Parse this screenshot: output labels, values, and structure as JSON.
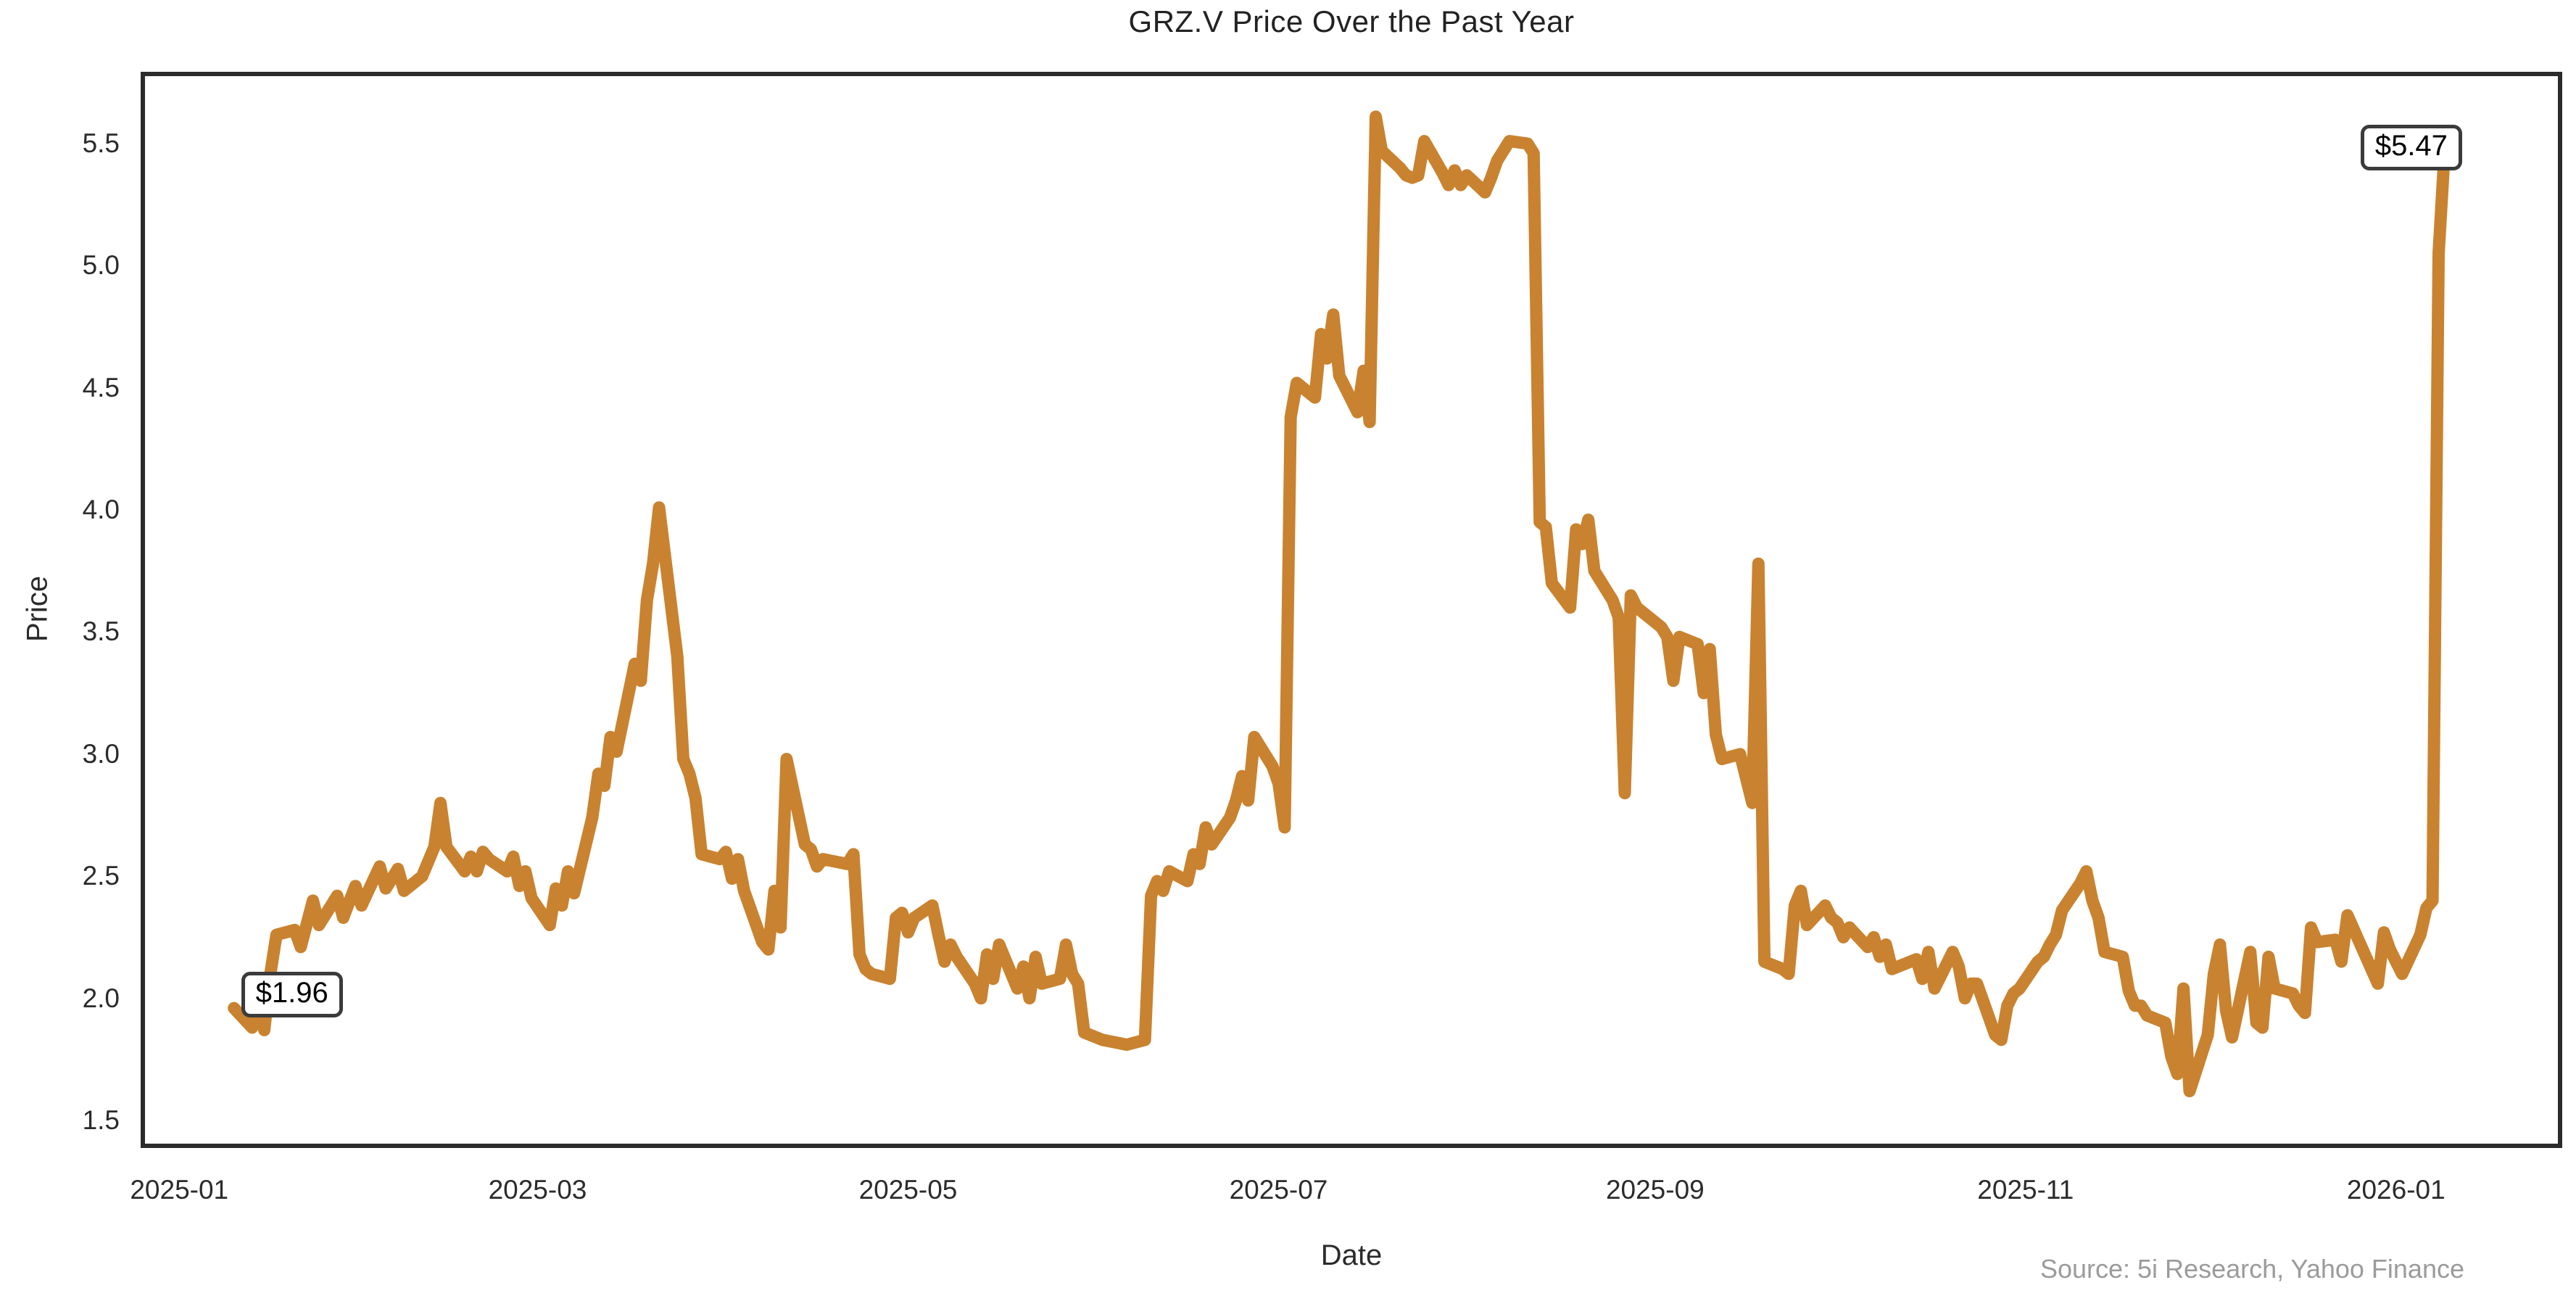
{
  "title": "GRZ.V Price Over the Past Year",
  "source_note": "Source: 5i Research, Yahoo Finance",
  "chart_data": {
    "type": "line",
    "title": "GRZ.V Price Over the Past Year",
    "xlabel": "Date",
    "ylabel": "Price",
    "grid": false,
    "legend_position": "none",
    "line_color": "#C9822F",
    "spine_color": "#2b2b2b",
    "ylim": [
      1.396,
      5.785
    ],
    "xlim_dates": [
      "2024-12-26",
      "2026-01-28"
    ],
    "y_ticks": [
      1.5,
      2.0,
      2.5,
      3.0,
      3.5,
      4.0,
      4.5,
      5.0,
      5.5
    ],
    "x_tick_labels": [
      "2025-01",
      "2025-03",
      "2025-05",
      "2025-07",
      "2025-09",
      "2025-11",
      "2026-01"
    ],
    "annotations": [
      {
        "label": "$1.96",
        "date": "2025-01-10",
        "price": 1.96
      },
      {
        "label": "$5.47",
        "date": "2026-01-09",
        "price": 5.47
      }
    ],
    "series": [
      {
        "name": "GRZ.V",
        "points": [
          [
            "2025-01-10",
            1.96
          ],
          [
            "2025-01-13",
            1.88
          ],
          [
            "2025-01-14",
            2.05
          ],
          [
            "2025-01-15",
            1.87
          ],
          [
            "2025-01-16",
            2.1
          ],
          [
            "2025-01-17",
            2.26
          ],
          [
            "2025-01-20",
            2.28
          ],
          [
            "2025-01-21",
            2.21
          ],
          [
            "2025-01-23",
            2.4
          ],
          [
            "2025-01-24",
            2.3
          ],
          [
            "2025-01-27",
            2.42
          ],
          [
            "2025-01-28",
            2.33
          ],
          [
            "2025-01-30",
            2.46
          ],
          [
            "2025-01-31",
            2.38
          ],
          [
            "2025-02-03",
            2.54
          ],
          [
            "2025-02-04",
            2.45
          ],
          [
            "2025-02-06",
            2.53
          ],
          [
            "2025-02-07",
            2.44
          ],
          [
            "2025-02-10",
            2.5
          ],
          [
            "2025-02-12",
            2.62
          ],
          [
            "2025-02-13",
            2.8
          ],
          [
            "2025-02-14",
            2.62
          ],
          [
            "2025-02-17",
            2.52
          ],
          [
            "2025-02-18",
            2.58
          ],
          [
            "2025-02-19",
            2.52
          ],
          [
            "2025-02-20",
            2.6
          ],
          [
            "2025-02-21",
            2.57
          ],
          [
            "2025-02-24",
            2.52
          ],
          [
            "2025-02-25",
            2.58
          ],
          [
            "2025-02-26",
            2.46
          ],
          [
            "2025-02-27",
            2.52
          ],
          [
            "2025-02-28",
            2.41
          ],
          [
            "2025-03-03",
            2.3
          ],
          [
            "2025-03-04",
            2.45
          ],
          [
            "2025-03-05",
            2.38
          ],
          [
            "2025-03-06",
            2.52
          ],
          [
            "2025-03-07",
            2.43
          ],
          [
            "2025-03-10",
            2.74
          ],
          [
            "2025-03-11",
            2.92
          ],
          [
            "2025-03-12",
            2.87
          ],
          [
            "2025-03-13",
            3.07
          ],
          [
            "2025-03-14",
            3.01
          ],
          [
            "2025-03-17",
            3.37
          ],
          [
            "2025-03-18",
            3.3
          ],
          [
            "2025-03-19",
            3.63
          ],
          [
            "2025-03-20",
            3.78
          ],
          [
            "2025-03-21",
            4.01
          ],
          [
            "2025-03-24",
            3.4
          ],
          [
            "2025-03-25",
            2.98
          ],
          [
            "2025-03-26",
            2.92
          ],
          [
            "2025-03-27",
            2.82
          ],
          [
            "2025-03-28",
            2.59
          ],
          [
            "2025-03-31",
            2.57
          ],
          [
            "2025-04-01",
            2.6
          ],
          [
            "2025-04-02",
            2.49
          ],
          [
            "2025-04-03",
            2.57
          ],
          [
            "2025-04-04",
            2.44
          ],
          [
            "2025-04-07",
            2.23
          ],
          [
            "2025-04-08",
            2.2
          ],
          [
            "2025-04-09",
            2.44
          ],
          [
            "2025-04-10",
            2.29
          ],
          [
            "2025-04-11",
            2.98
          ],
          [
            "2025-04-14",
            2.63
          ],
          [
            "2025-04-15",
            2.61
          ],
          [
            "2025-04-16",
            2.54
          ],
          [
            "2025-04-17",
            2.57
          ],
          [
            "2025-04-21",
            2.55
          ],
          [
            "2025-04-22",
            2.59
          ],
          [
            "2025-04-23",
            2.18
          ],
          [
            "2025-04-24",
            2.12
          ],
          [
            "2025-04-25",
            2.1
          ],
          [
            "2025-04-28",
            2.08
          ],
          [
            "2025-04-29",
            2.33
          ],
          [
            "2025-04-30",
            2.35
          ],
          [
            "2025-05-01",
            2.27
          ],
          [
            "2025-05-02",
            2.33
          ],
          [
            "2025-05-05",
            2.38
          ],
          [
            "2025-05-06",
            2.26
          ],
          [
            "2025-05-07",
            2.15
          ],
          [
            "2025-05-08",
            2.22
          ],
          [
            "2025-05-09",
            2.17
          ],
          [
            "2025-05-12",
            2.06
          ],
          [
            "2025-05-13",
            2.0
          ],
          [
            "2025-05-14",
            2.18
          ],
          [
            "2025-05-15",
            2.08
          ],
          [
            "2025-05-16",
            2.22
          ],
          [
            "2025-05-19",
            2.04
          ],
          [
            "2025-05-20",
            2.13
          ],
          [
            "2025-05-21",
            2.0
          ],
          [
            "2025-05-22",
            2.17
          ],
          [
            "2025-05-23",
            2.06
          ],
          [
            "2025-05-26",
            2.08
          ],
          [
            "2025-05-27",
            2.22
          ],
          [
            "2025-05-28",
            2.1
          ],
          [
            "2025-05-29",
            2.06
          ],
          [
            "2025-05-30",
            1.86
          ],
          [
            "2025-06-02",
            1.83
          ],
          [
            "2025-06-04",
            1.82
          ],
          [
            "2025-06-06",
            1.81
          ],
          [
            "2025-06-09",
            1.83
          ],
          [
            "2025-06-10",
            2.42
          ],
          [
            "2025-06-11",
            2.48
          ],
          [
            "2025-06-12",
            2.44
          ],
          [
            "2025-06-13",
            2.52
          ],
          [
            "2025-06-16",
            2.48
          ],
          [
            "2025-06-17",
            2.59
          ],
          [
            "2025-06-18",
            2.55
          ],
          [
            "2025-06-19",
            2.7
          ],
          [
            "2025-06-20",
            2.63
          ],
          [
            "2025-06-23",
            2.74
          ],
          [
            "2025-06-24",
            2.81
          ],
          [
            "2025-06-25",
            2.91
          ],
          [
            "2025-06-26",
            2.81
          ],
          [
            "2025-06-27",
            3.07
          ],
          [
            "2025-06-30",
            2.95
          ],
          [
            "2025-07-01",
            2.88
          ],
          [
            "2025-07-02",
            2.7
          ],
          [
            "2025-07-03",
            4.38
          ],
          [
            "2025-07-04",
            4.52
          ],
          [
            "2025-07-07",
            4.46
          ],
          [
            "2025-07-08",
            4.72
          ],
          [
            "2025-07-09",
            4.62
          ],
          [
            "2025-07-10",
            4.8
          ],
          [
            "2025-07-11",
            4.55
          ],
          [
            "2025-07-14",
            4.4
          ],
          [
            "2025-07-15",
            4.57
          ],
          [
            "2025-07-16",
            4.36
          ],
          [
            "2025-07-17",
            5.61
          ],
          [
            "2025-07-18",
            5.47
          ],
          [
            "2025-07-21",
            5.4
          ],
          [
            "2025-07-22",
            5.37
          ],
          [
            "2025-07-23",
            5.36
          ],
          [
            "2025-07-24",
            5.37
          ],
          [
            "2025-07-25",
            5.51
          ],
          [
            "2025-07-28",
            5.38
          ],
          [
            "2025-07-29",
            5.33
          ],
          [
            "2025-07-30",
            5.39
          ],
          [
            "2025-07-31",
            5.33
          ],
          [
            "2025-08-01",
            5.37
          ],
          [
            "2025-08-04",
            5.3
          ],
          [
            "2025-08-05",
            5.36
          ],
          [
            "2025-08-06",
            5.43
          ],
          [
            "2025-08-07",
            5.47
          ],
          [
            "2025-08-08",
            5.51
          ],
          [
            "2025-08-11",
            5.5
          ],
          [
            "2025-08-12",
            5.46
          ],
          [
            "2025-08-13",
            3.95
          ],
          [
            "2025-08-14",
            3.93
          ],
          [
            "2025-08-15",
            3.7
          ],
          [
            "2025-08-18",
            3.6
          ],
          [
            "2025-08-19",
            3.92
          ],
          [
            "2025-08-20",
            3.86
          ],
          [
            "2025-08-21",
            3.96
          ],
          [
            "2025-08-22",
            3.75
          ],
          [
            "2025-08-25",
            3.63
          ],
          [
            "2025-08-26",
            3.56
          ],
          [
            "2025-08-27",
            2.84
          ],
          [
            "2025-08-28",
            3.65
          ],
          [
            "2025-08-29",
            3.6
          ],
          [
            "2025-09-02",
            3.52
          ],
          [
            "2025-09-03",
            3.48
          ],
          [
            "2025-09-04",
            3.3
          ],
          [
            "2025-09-05",
            3.48
          ],
          [
            "2025-09-08",
            3.45
          ],
          [
            "2025-09-09",
            3.25
          ],
          [
            "2025-09-10",
            3.43
          ],
          [
            "2025-09-11",
            3.08
          ],
          [
            "2025-09-12",
            2.98
          ],
          [
            "2025-09-15",
            3.0
          ],
          [
            "2025-09-16",
            2.9
          ],
          [
            "2025-09-17",
            2.8
          ],
          [
            "2025-09-18",
            3.78
          ],
          [
            "2025-09-19",
            2.15
          ],
          [
            "2025-09-22",
            2.12
          ],
          [
            "2025-09-23",
            2.1
          ],
          [
            "2025-09-24",
            2.38
          ],
          [
            "2025-09-25",
            2.44
          ],
          [
            "2025-09-26",
            2.3
          ],
          [
            "2025-09-29",
            2.38
          ],
          [
            "2025-09-30",
            2.33
          ],
          [
            "2025-10-01",
            2.31
          ],
          [
            "2025-10-02",
            2.25
          ],
          [
            "2025-10-03",
            2.29
          ],
          [
            "2025-10-06",
            2.21
          ],
          [
            "2025-10-07",
            2.25
          ],
          [
            "2025-10-08",
            2.17
          ],
          [
            "2025-10-09",
            2.22
          ],
          [
            "2025-10-10",
            2.12
          ],
          [
            "2025-10-14",
            2.16
          ],
          [
            "2025-10-15",
            2.08
          ],
          [
            "2025-10-16",
            2.19
          ],
          [
            "2025-10-17",
            2.04
          ],
          [
            "2025-10-20",
            2.19
          ],
          [
            "2025-10-21",
            2.13
          ],
          [
            "2025-10-22",
            2.0
          ],
          [
            "2025-10-23",
            2.06
          ],
          [
            "2025-10-24",
            2.06
          ],
          [
            "2025-10-27",
            1.85
          ],
          [
            "2025-10-28",
            1.83
          ],
          [
            "2025-10-29",
            1.97
          ],
          [
            "2025-10-30",
            2.02
          ],
          [
            "2025-10-31",
            2.04
          ],
          [
            "2025-11-03",
            2.15
          ],
          [
            "2025-11-04",
            2.17
          ],
          [
            "2025-11-05",
            2.22
          ],
          [
            "2025-11-06",
            2.26
          ],
          [
            "2025-11-07",
            2.36
          ],
          [
            "2025-11-10",
            2.47
          ],
          [
            "2025-11-11",
            2.52
          ],
          [
            "2025-11-12",
            2.4
          ],
          [
            "2025-11-13",
            2.33
          ],
          [
            "2025-11-14",
            2.19
          ],
          [
            "2025-11-17",
            2.17
          ],
          [
            "2025-11-18",
            2.03
          ],
          [
            "2025-11-19",
            1.97
          ],
          [
            "2025-11-20",
            1.97
          ],
          [
            "2025-11-21",
            1.93
          ],
          [
            "2025-11-24",
            1.9
          ],
          [
            "2025-11-25",
            1.76
          ],
          [
            "2025-11-26",
            1.69
          ],
          [
            "2025-11-27",
            2.04
          ],
          [
            "2025-11-28",
            1.62
          ],
          [
            "2025-12-01",
            1.85
          ],
          [
            "2025-12-02",
            2.1
          ],
          [
            "2025-12-03",
            2.22
          ],
          [
            "2025-12-04",
            1.95
          ],
          [
            "2025-12-05",
            1.84
          ],
          [
            "2025-12-08",
            2.19
          ],
          [
            "2025-12-09",
            1.9
          ],
          [
            "2025-12-10",
            1.88
          ],
          [
            "2025-12-11",
            2.17
          ],
          [
            "2025-12-12",
            2.04
          ],
          [
            "2025-12-15",
            2.02
          ],
          [
            "2025-12-16",
            1.97
          ],
          [
            "2025-12-17",
            1.94
          ],
          [
            "2025-12-18",
            2.29
          ],
          [
            "2025-12-19",
            2.23
          ],
          [
            "2025-12-22",
            2.24
          ],
          [
            "2025-12-23",
            2.15
          ],
          [
            "2025-12-24",
            2.34
          ],
          [
            "2025-12-29",
            2.06
          ],
          [
            "2025-12-30",
            2.27
          ],
          [
            "2025-12-31",
            2.2
          ],
          [
            "2026-01-02",
            2.1
          ],
          [
            "2026-01-05",
            2.26
          ],
          [
            "2026-01-06",
            2.37
          ],
          [
            "2026-01-07",
            2.4
          ],
          [
            "2026-01-08",
            5.05
          ],
          [
            "2026-01-09",
            5.47
          ]
        ]
      }
    ]
  }
}
